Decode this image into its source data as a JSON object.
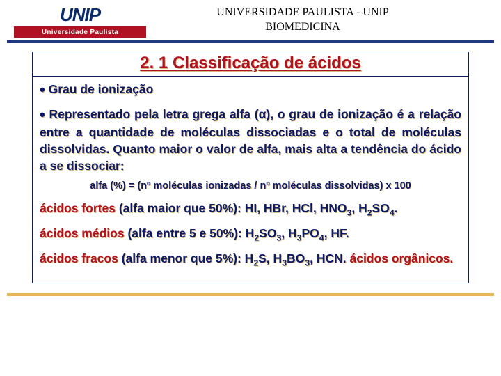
{
  "header": {
    "logo_top": "UNIP",
    "logo_bottom": "Universidade Paulista",
    "line1": "UNIVERSIDADE PAULISTA - UNIP",
    "line2": "BIOMEDICINA"
  },
  "title": "2. 1 Classificação de ácidos",
  "bullet1": "Grau de ionização",
  "paragraph_lead": "Representado pela letra grega alfa (α), o grau de ionização é a",
  "paragraph_rest": "relação entre a quantidade de moléculas dissociadas e o total de moléculas dissolvidas. Quanto maior o valor de alfa, mais alta a tendência do ácido a se dissociar:",
  "formula": "alfa (%) = (nº moléculas ionizadas / nº moléculas dissolvidas) x 100",
  "strong": {
    "label": "ácidos fortes",
    "desc": "(alfa maior que 50%): HI, HBr, HCl, HNO",
    "tail1": ", H",
    "tail2": "SO",
    "end": "."
  },
  "medium": {
    "label": "ácidos médios",
    "desc": "(alfa entre 5 e 50%): H",
    "m1": "SO",
    "m2": ", H",
    "m3": "PO",
    "m4": ", HF."
  },
  "weak": {
    "label": "ácidos fracos",
    "desc": "(alfa menor que 5%): H",
    "w1": "S, H",
    "w2": "BO",
    "w3": ", HCN.",
    "tail_label": "ácidos orgânicos."
  },
  "colors": {
    "blue": "#0a1a66",
    "red": "#b01224",
    "navy_bar": "#203884",
    "gold_bar": "#e6b84f",
    "shadow": "#d9b97a"
  }
}
